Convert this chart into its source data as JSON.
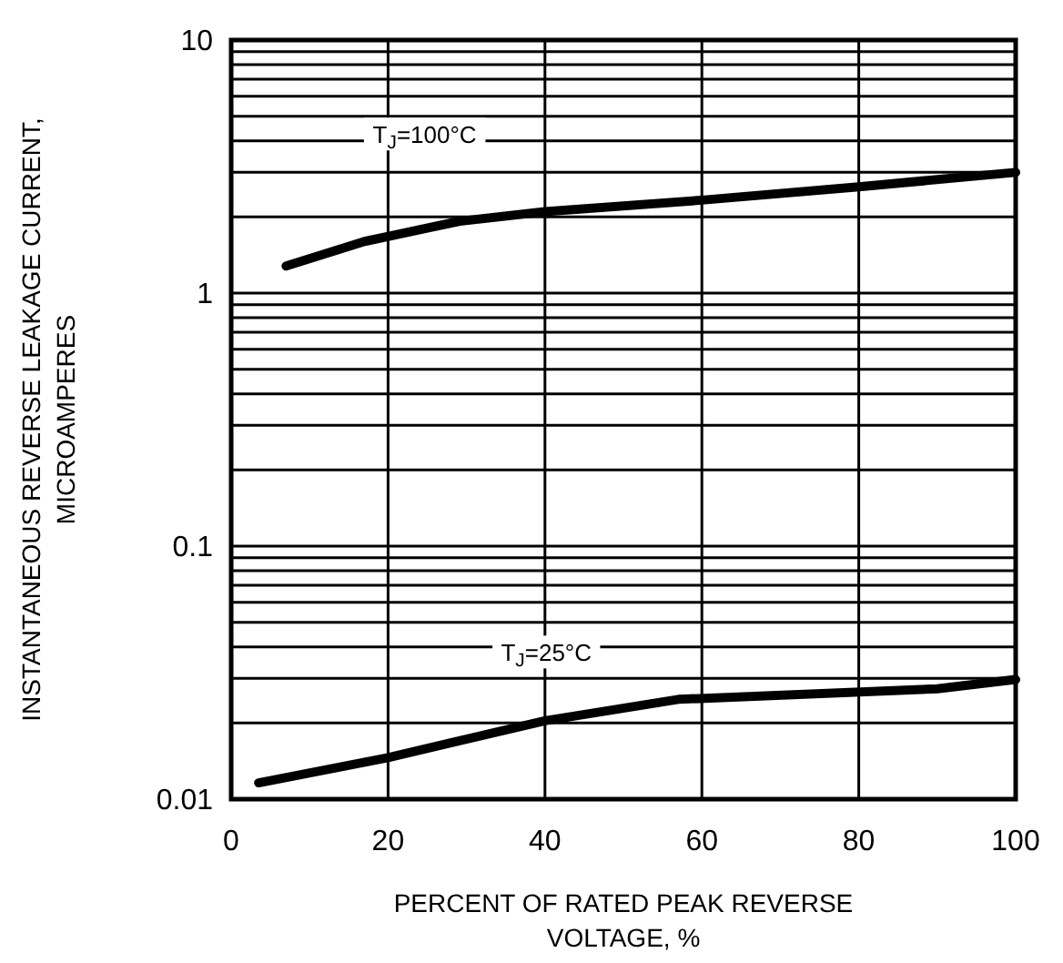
{
  "chart_data": {
    "type": "line",
    "xlabel": "PERCENT OF RATED PEAK REVERSE\nVOLTAGE, %",
    "ylabel": "INSTANTANEOUS REVERSE LEAKAGE CURRENT,\nMICROAMPERES",
    "xlim": [
      0,
      100
    ],
    "xticks": [
      0,
      20,
      40,
      60,
      80,
      100
    ],
    "ylim": [
      0.01,
      10
    ],
    "yticks": [
      0.01,
      {
        "value": 0.02,
        "label": null
      },
      {
        "value": 0.03,
        "label": null
      },
      {
        "value": 0.04,
        "label": null
      },
      {
        "value": 0.05,
        "label": null
      },
      {
        "value": 0.06,
        "label": null
      },
      {
        "value": 0.07,
        "label": null
      },
      {
        "value": 0.08,
        "label": null
      },
      {
        "value": 0.09,
        "label": null
      },
      0.1,
      {
        "value": 0.2,
        "label": null
      },
      {
        "value": 0.3,
        "label": null
      },
      {
        "value": 0.4,
        "label": null
      },
      {
        "value": 0.5,
        "label": null
      },
      {
        "value": 0.6,
        "label": null
      },
      {
        "value": 0.7,
        "label": null
      },
      {
        "value": 0.8,
        "label": null
      },
      {
        "value": 0.9,
        "label": null
      },
      1,
      {
        "value": 2,
        "label": null
      },
      {
        "value": 3,
        "label": null
      },
      {
        "value": 4,
        "label": null
      },
      {
        "value": 5,
        "label": null
      },
      {
        "value": 6,
        "label": null
      },
      {
        "value": 7,
        "label": null
      },
      {
        "value": 8,
        "label": null
      },
      {
        "value": 9,
        "label": null
      },
      10
    ],
    "log": "y",
    "grid": true,
    "marker": "none",
    "line_style": "solid",
    "series": [
      {
        "name": "T$_{J}$=100°C",
        "color": "#000000",
        "x": [
          7,
          17,
          29,
          40,
          60,
          80,
          100
        ],
        "values": [
          1.28,
          1.6,
          1.92,
          2.1,
          2.33,
          2.63,
          3.0
        ]
      },
      {
        "name": "T$_{J}$=25°C",
        "color": "#000000",
        "x": [
          3.5,
          20,
          40,
          57,
          90,
          100
        ],
        "values": [
          0.0116,
          0.0146,
          0.0204,
          0.0248,
          0.0273,
          0.0297
        ]
      }
    ]
  }
}
